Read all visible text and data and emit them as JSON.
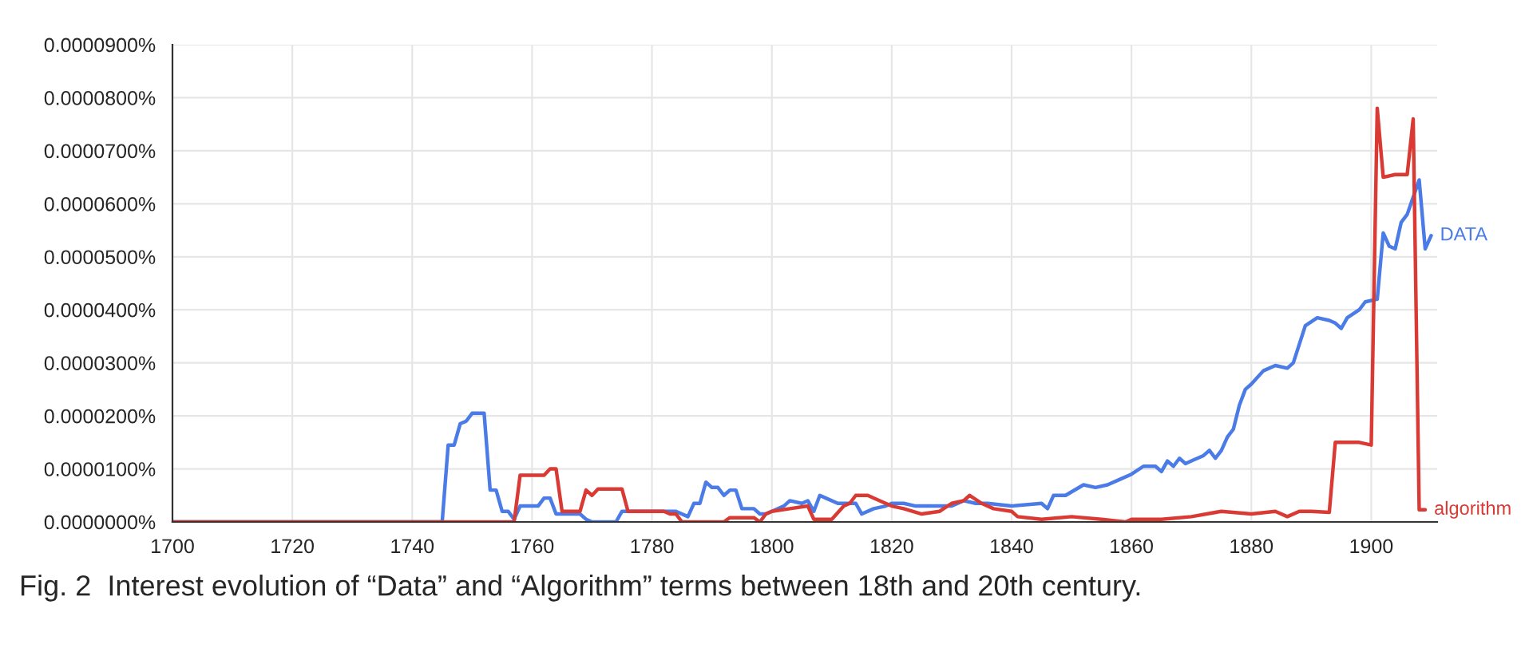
{
  "chart_data": {
    "type": "line",
    "annotations": [
      "Fig. 2  Interest evolution of “Data” and “Algorithm” terms between 18th and 20th century."
    ],
    "series": [
      {
        "name": "DATA",
        "color": "#4a7be6",
        "x": [
          1700,
          1745,
          1746,
          1747,
          1748,
          1749,
          1750,
          1751,
          1752,
          1753,
          1754,
          1755,
          1756,
          1757,
          1758,
          1761,
          1762,
          1763,
          1764,
          1768,
          1769,
          1770,
          1774,
          1775,
          1784,
          1786,
          1787,
          1788,
          1789,
          1790,
          1791,
          1792,
          1793,
          1794,
          1795,
          1797,
          1798,
          1799,
          1800,
          1802,
          1803,
          1805,
          1806,
          1807,
          1808,
          1809,
          1811,
          1813,
          1814,
          1815,
          1817,
          1819,
          1820,
          1822,
          1824,
          1830,
          1832,
          1834,
          1836,
          1840,
          1845,
          1846,
          1847,
          1849,
          1852,
          1854,
          1856,
          1858,
          1860,
          1862,
          1864,
          1865,
          1866,
          1867,
          1868,
          1869,
          1870,
          1872,
          1873,
          1874,
          1875,
          1876,
          1877,
          1878,
          1879,
          1880,
          1882,
          1884,
          1886,
          1887,
          1889,
          1891,
          1893,
          1894,
          1895,
          1896,
          1898,
          1899,
          1901,
          1902,
          1903,
          1904,
          1905,
          1906,
          1908,
          1909,
          1910
        ],
        "values": [
          0,
          0,
          1.45e-05,
          1.45e-05,
          1.85e-05,
          1.9e-05,
          2.05e-05,
          2.05e-05,
          2.05e-05,
          6e-06,
          6e-06,
          2e-06,
          2e-06,
          5e-07,
          3e-06,
          3e-06,
          4.5e-06,
          4.5e-06,
          1.5e-06,
          1.5e-06,
          5e-07,
          0,
          0,
          2e-06,
          2e-06,
          1e-06,
          3.5e-06,
          3.5e-06,
          7.5e-06,
          6.5e-06,
          6.5e-06,
          5e-06,
          6e-06,
          6e-06,
          2.5e-06,
          2.5e-06,
          1.5e-06,
          1.5e-06,
          2e-06,
          3e-06,
          4e-06,
          3.5e-06,
          4e-06,
          2e-06,
          5e-06,
          4.5e-06,
          3.5e-06,
          3.5e-06,
          3.5e-06,
          1.5e-06,
          2.5e-06,
          3e-06,
          3.5e-06,
          3.5e-06,
          3e-06,
          3e-06,
          4e-06,
          3.5e-06,
          3.5e-06,
          3e-06,
          3.5e-06,
          2.5e-06,
          5e-06,
          5e-06,
          7e-06,
          6.5e-06,
          7e-06,
          8e-06,
          9e-06,
          1.05e-05,
          1.05e-05,
          9.5e-06,
          1.15e-05,
          1.05e-05,
          1.2e-05,
          1.1e-05,
          1.15e-05,
          1.25e-05,
          1.35e-05,
          1.2e-05,
          1.35e-05,
          1.6e-05,
          1.75e-05,
          2.2e-05,
          2.5e-05,
          2.6e-05,
          2.85e-05,
          2.95e-05,
          2.9e-05,
          3e-05,
          3.7e-05,
          3.85e-05,
          3.8e-05,
          3.75e-05,
          3.65e-05,
          3.85e-05,
          4e-05,
          4.15e-05,
          4.2e-05,
          5.45e-05,
          5.2e-05,
          5.15e-05,
          5.65e-05,
          5.8e-05,
          6.45e-05,
          5.15e-05,
          5.4e-05
        ]
      },
      {
        "name": "algorithm",
        "color": "#d93a34",
        "x": [
          1700,
          1757,
          1758,
          1762,
          1763,
          1764,
          1765,
          1768,
          1769,
          1770,
          1771,
          1775,
          1776,
          1782,
          1783,
          1784,
          1785,
          1792,
          1793,
          1797,
          1798,
          1799,
          1800,
          1803,
          1806,
          1807,
          1810,
          1812,
          1813,
          1814,
          1816,
          1818,
          1820,
          1822,
          1825,
          1828,
          1830,
          1832,
          1833,
          1835,
          1837,
          1840,
          1841,
          1845,
          1850,
          1855,
          1859,
          1860,
          1865,
          1870,
          1875,
          1880,
          1884,
          1886,
          1888,
          1890,
          1893,
          1894,
          1898,
          1900,
          1901,
          1902,
          1904,
          1906,
          1907,
          1908,
          1909
        ],
        "values": [
          0,
          0,
          8.8e-06,
          8.8e-06,
          1e-05,
          1e-05,
          2e-06,
          2e-06,
          6e-06,
          5e-06,
          6.2e-06,
          6.2e-06,
          2e-06,
          2e-06,
          1.5e-06,
          1.5e-06,
          0,
          0,
          8e-07,
          8e-07,
          0,
          1.5e-06,
          2e-06,
          2.5e-06,
          3e-06,
          5e-07,
          5e-07,
          3e-06,
          3.5e-06,
          5e-06,
          5e-06,
          4e-06,
          3e-06,
          2.5e-06,
          1.5e-06,
          2e-06,
          3.5e-06,
          4e-06,
          5e-06,
          3.5e-06,
          2.5e-06,
          2e-06,
          1e-06,
          5e-07,
          1e-06,
          5e-07,
          0,
          5e-07,
          5e-07,
          1e-06,
          2e-06,
          1.5e-06,
          2e-06,
          1e-06,
          2e-06,
          2e-06,
          1.8e-06,
          1.5e-05,
          1.5e-05,
          1.45e-05,
          7.8e-05,
          6.5e-05,
          6.55e-05,
          6.55e-05,
          7.6e-05,
          2.3e-06,
          2.3e-06
        ]
      }
    ],
    "xlim": [
      1700,
      1911
    ],
    "xticks": [
      1700,
      1720,
      1740,
      1760,
      1780,
      1800,
      1820,
      1840,
      1860,
      1880,
      1900
    ],
    "ylim": [
      0,
      9e-05
    ],
    "yticks": [
      {
        "value": 0,
        "label": "0.0000000%"
      },
      {
        "value": 1e-05,
        "label": "0.0000100%"
      },
      {
        "value": 2e-05,
        "label": "0.0000200%"
      },
      {
        "value": 3e-05,
        "label": "0.0000300%"
      },
      {
        "value": 4e-05,
        "label": "0.0000400%"
      },
      {
        "value": 5e-05,
        "label": "0.0000500%"
      },
      {
        "value": 6e-05,
        "label": "0.0000600%"
      },
      {
        "value": 7e-05,
        "label": "0.0000700%"
      },
      {
        "value": 8e-05,
        "label": "0.0000800%"
      },
      {
        "value": 9e-05,
        "label": "0.0000900%"
      }
    ],
    "grid": true,
    "legend": false,
    "marker": "none",
    "line_style": "solid"
  }
}
